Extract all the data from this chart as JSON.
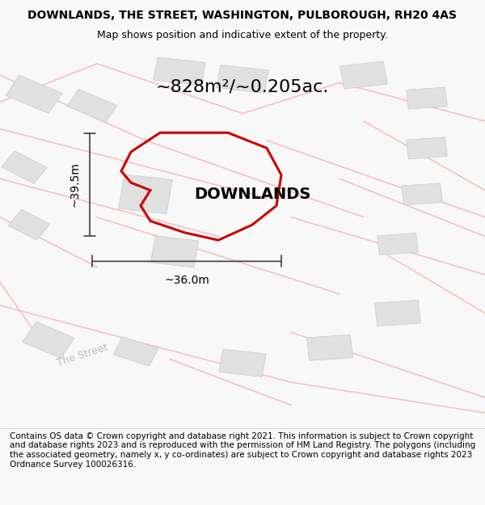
{
  "title": "DOWNLANDS, THE STREET, WASHINGTON, PULBOROUGH, RH20 4AS",
  "subtitle": "Map shows position and indicative extent of the property.",
  "area_label": "~828m²/~0.205ac.",
  "property_label": "DOWNLANDS",
  "dim_width": "~36.0m",
  "dim_height": "~39.5m",
  "footer": "Contains OS data © Crown copyright and database right 2021. This information is subject to Crown copyright and database rights 2023 and is reproduced with the permission of HM Land Registry. The polygons (including the associated geometry, namely x, y co-ordinates) are subject to Crown copyright and database rights 2023 Ordnance Survey 100026316.",
  "bg_color": "#f8f8f8",
  "map_bg": "#ffffff",
  "road_color": "#f5c0c0",
  "building_color": "#e0e0e0",
  "building_edge": "#c8c8c8",
  "property_outline_color": "#cc0000",
  "dim_line_color": "#404040",
  "title_fontsize": 10,
  "subtitle_fontsize": 9,
  "area_fontsize": 16,
  "property_label_fontsize": 14,
  "dim_fontsize": 10,
  "footer_fontsize": 7.5,
  "road_label_color": "#bbbbbb",
  "road_label_fontsize": 10
}
